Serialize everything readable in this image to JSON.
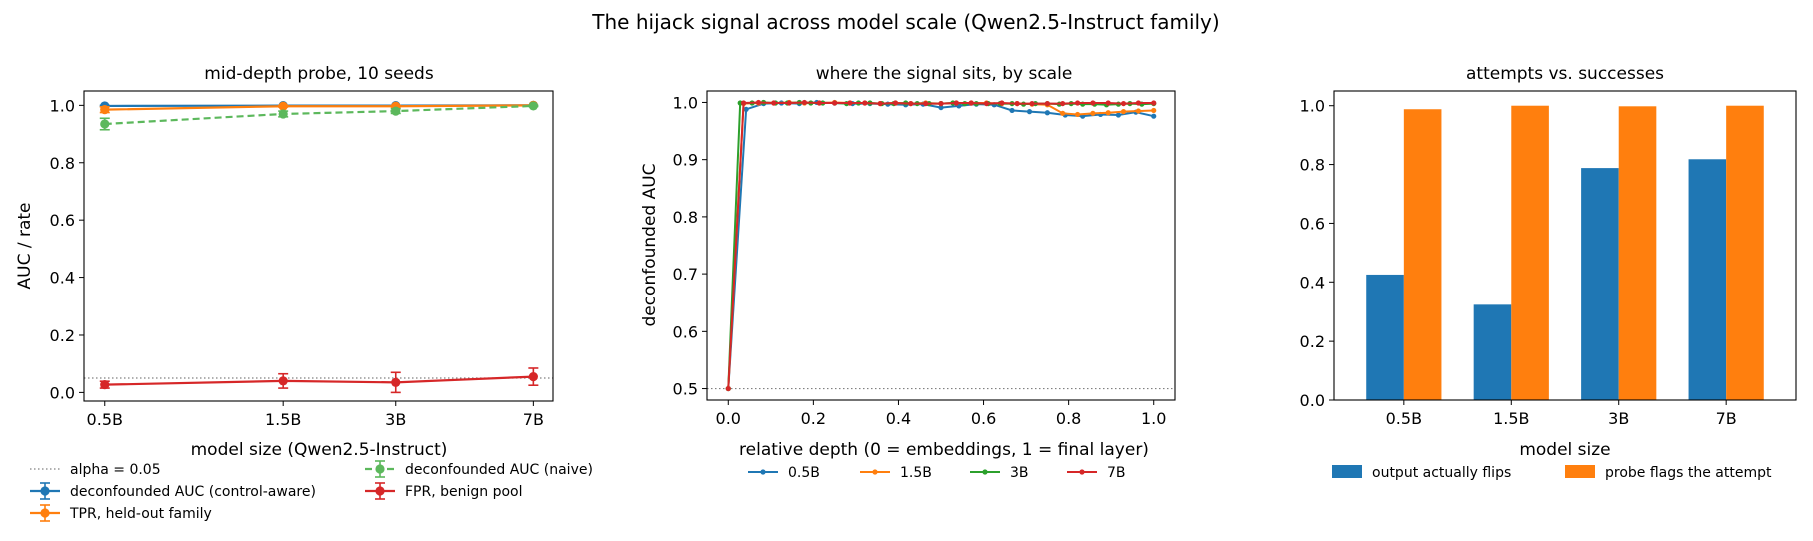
{
  "figure": {
    "title": "The hijack signal across model scale (Qwen2.5-Instruct family)"
  },
  "colors": {
    "blue": "#1f77b4",
    "orange": "#ff7f0e",
    "green": "#2ca02c",
    "red": "#d62728",
    "light_green": "#5cb85c",
    "reference_line": "#808080"
  },
  "chart_data": [
    {
      "type": "line",
      "title": "mid-depth probe, 10 seeds",
      "xlabel": "model size (Qwen2.5-Instruct)",
      "ylabel": "AUC / rate",
      "categories": [
        "0.5B",
        "1.5B",
        "3B",
        "7B"
      ],
      "x_positions": [
        0.5,
        1.5,
        3,
        7
      ],
      "x_scale": "log",
      "xlim": [
        0.44,
        7.9
      ],
      "ylim": [
        -0.03,
        1.05
      ],
      "yticks": [
        "0.0",
        "0.2",
        "0.4",
        "0.6",
        "0.8",
        "1.0"
      ],
      "grid": false,
      "reference_line": {
        "label": "alpha = 0.05",
        "y": 0.05,
        "style": "dotted"
      },
      "series": [
        {
          "name": "deconfounded AUC (control-aware)",
          "color": "#1f77b4",
          "style": "solid",
          "values": [
            0.998,
            0.999,
            0.999,
            1.0
          ],
          "errors": [
            0.002,
            0.001,
            0.001,
            0.0
          ]
        },
        {
          "name": "TPR, held-out family",
          "color": "#ff7f0e",
          "style": "solid",
          "values": [
            0.985,
            0.997,
            0.997,
            1.0
          ],
          "errors": [
            0.01,
            0.003,
            0.003,
            0.0
          ]
        },
        {
          "name": "deconfounded AUC (naive)",
          "color": "#5cb85c",
          "style": "dashed",
          "values": [
            0.935,
            0.97,
            0.98,
            0.998
          ],
          "errors": [
            0.02,
            0.01,
            0.008,
            0.002
          ]
        },
        {
          "name": "FPR, benign pool",
          "color": "#d62728",
          "style": "solid",
          "values": [
            0.027,
            0.04,
            0.035,
            0.055
          ],
          "errors": [
            0.012,
            0.025,
            0.035,
            0.03
          ]
        }
      ],
      "legend": {
        "placement": "below",
        "columns": 2
      }
    },
    {
      "type": "line",
      "title": "where the signal sits, by scale",
      "xlabel": "relative depth (0 = embeddings, 1 = final layer)",
      "ylabel": "deconfounded AUC",
      "xlim": [
        -0.05,
        1.05
      ],
      "ylim": [
        0.48,
        1.02
      ],
      "xticks": [
        "0.0",
        "0.2",
        "0.4",
        "0.6",
        "0.8",
        "1.0"
      ],
      "yticks": [
        "0.5",
        "0.6",
        "0.7",
        "0.8",
        "0.9",
        "1.0"
      ],
      "grid": false,
      "reference_line": {
        "y": 0.5,
        "style": "dotted"
      },
      "series": [
        {
          "name": "0.5B",
          "color": "#1f77b4",
          "x": [
            0.0,
            0.042,
            0.083,
            0.125,
            0.167,
            0.208,
            0.25,
            0.292,
            0.333,
            0.375,
            0.417,
            0.458,
            0.5,
            0.542,
            0.583,
            0.625,
            0.667,
            0.708,
            0.75,
            0.792,
            0.833,
            0.875,
            0.917,
            0.958,
            1.0
          ],
          "y": [
            0.5,
            0.988,
            0.998,
            0.999,
            0.998,
            1.0,
            0.999,
            0.998,
            0.998,
            0.997,
            0.996,
            0.997,
            0.991,
            0.994,
            0.997,
            0.996,
            0.986,
            0.984,
            0.982,
            0.978,
            0.976,
            0.979,
            0.978,
            0.983,
            0.976
          ]
        },
        {
          "name": "1.5B",
          "color": "#ff7f0e",
          "x": [
            0.0,
            0.036,
            0.071,
            0.107,
            0.143,
            0.179,
            0.214,
            0.25,
            0.286,
            0.321,
            0.357,
            0.393,
            0.429,
            0.464,
            0.5,
            0.536,
            0.571,
            0.607,
            0.643,
            0.679,
            0.714,
            0.75,
            0.786,
            0.821,
            0.857,
            0.893,
            0.929,
            0.964,
            1.0
          ],
          "y": [
            0.5,
            0.998,
            0.999,
            0.999,
            1.0,
            0.999,
            0.999,
            1.0,
            0.999,
            0.999,
            0.998,
            0.999,
            0.998,
            0.999,
            0.998,
            0.999,
            0.999,
            0.999,
            0.998,
            0.998,
            0.997,
            0.996,
            0.981,
            0.979,
            0.981,
            0.982,
            0.984,
            0.985,
            0.986
          ]
        },
        {
          "name": "3B",
          "color": "#2ca02c",
          "x": [
            0.0,
            0.028,
            0.056,
            0.083,
            0.111,
            0.139,
            0.167,
            0.194,
            0.222,
            0.25,
            0.278,
            0.306,
            0.333,
            0.361,
            0.389,
            0.417,
            0.444,
            0.472,
            0.5,
            0.528,
            0.556,
            0.583,
            0.611,
            0.639,
            0.667,
            0.694,
            0.722,
            0.75,
            0.778,
            0.806,
            0.833,
            0.861,
            0.889,
            0.917,
            0.944,
            0.972,
            1.0
          ],
          "y": [
            0.5,
            0.999,
            0.999,
            1.0,
            0.999,
            0.999,
            1.0,
            0.999,
            0.999,
            0.999,
            0.998,
            0.999,
            0.999,
            0.998,
            0.998,
            0.999,
            0.998,
            0.998,
            0.998,
            0.999,
            0.998,
            0.998,
            0.998,
            0.998,
            0.998,
            0.997,
            0.998,
            0.998,
            0.997,
            0.998,
            0.997,
            0.997,
            0.996,
            0.997,
            0.998,
            0.997,
            0.998
          ]
        },
        {
          "name": "7B",
          "color": "#d62728",
          "x": [
            0.0,
            0.036,
            0.071,
            0.107,
            0.143,
            0.179,
            0.214,
            0.25,
            0.286,
            0.321,
            0.357,
            0.393,
            0.429,
            0.464,
            0.5,
            0.536,
            0.571,
            0.607,
            0.643,
            0.679,
            0.714,
            0.75,
            0.786,
            0.821,
            0.857,
            0.893,
            0.929,
            0.964,
            1.0
          ],
          "y": [
            0.5,
            0.999,
            1.0,
            0.999,
            0.999,
            1.0,
            0.999,
            0.999,
            0.999,
            0.999,
            0.998,
            0.999,
            0.998,
            0.998,
            0.998,
            0.999,
            0.999,
            0.998,
            0.999,
            0.998,
            0.998,
            0.998,
            0.998,
            0.999,
            0.999,
            0.999,
            0.998,
            0.999,
            0.999
          ]
        }
      ],
      "legend": {
        "placement": "below",
        "columns": 4
      }
    },
    {
      "type": "bar",
      "title": "attempts vs. successes",
      "xlabel": "model size",
      "ylabel": "",
      "categories": [
        "0.5B",
        "1.5B",
        "3B",
        "7B"
      ],
      "ylim": [
        0,
        1.05
      ],
      "yticks": [
        "0.0",
        "0.2",
        "0.4",
        "0.6",
        "0.8",
        "1.0"
      ],
      "grid": false,
      "series": [
        {
          "name": "output actually flips",
          "color": "#1f77b4",
          "values": [
            0.425,
            0.325,
            0.788,
            0.818
          ]
        },
        {
          "name": "probe flags the attempt",
          "color": "#ff7f0e",
          "values": [
            0.988,
            1.0,
            0.998,
            1.0
          ]
        }
      ],
      "legend": {
        "placement": "below",
        "columns": 2
      }
    }
  ]
}
